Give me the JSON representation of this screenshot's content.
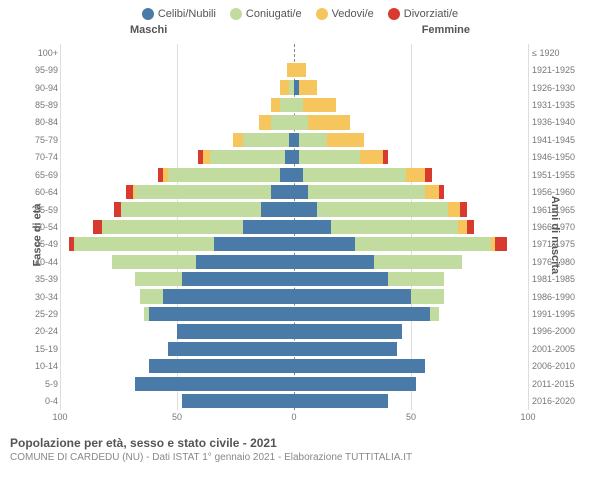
{
  "legend": [
    {
      "label": "Celibi/Nubili",
      "color": "#4a7aa8"
    },
    {
      "label": "Coniugati/e",
      "color": "#c2db9e"
    },
    {
      "label": "Vedovi/e",
      "color": "#f7c55e"
    },
    {
      "label": "Divorziati/e",
      "color": "#d83a2f"
    }
  ],
  "header_male": "Maschi",
  "header_female": "Femmine",
  "ylabel_left": "Fasce di età",
  "ylabel_right": "Anni di nascita",
  "x_max": 100,
  "x_ticks_male": [
    100,
    50,
    0
  ],
  "x_ticks_female": [
    50,
    100
  ],
  "colors": {
    "celibi": "#4a7aa8",
    "coniugati": "#c2db9e",
    "vedovi": "#f7c55e",
    "divorziati": "#d83a2f",
    "grid": "#dddddd",
    "center": "#888888"
  },
  "rows": [
    {
      "age": "100+",
      "birth": "≤ 1920",
      "m": [
        0,
        0,
        0,
        0
      ],
      "f": [
        0,
        0,
        0,
        0
      ]
    },
    {
      "age": "95-99",
      "birth": "1921-1925",
      "m": [
        0,
        0,
        3,
        0
      ],
      "f": [
        0,
        0,
        5,
        0
      ]
    },
    {
      "age": "90-94",
      "birth": "1926-1930",
      "m": [
        0,
        2,
        4,
        0
      ],
      "f": [
        2,
        0,
        8,
        0
      ]
    },
    {
      "age": "85-89",
      "birth": "1931-1935",
      "m": [
        0,
        6,
        4,
        0
      ],
      "f": [
        0,
        4,
        14,
        0
      ]
    },
    {
      "age": "80-84",
      "birth": "1936-1940",
      "m": [
        0,
        10,
        5,
        0
      ],
      "f": [
        0,
        6,
        18,
        0
      ]
    },
    {
      "age": "75-79",
      "birth": "1941-1945",
      "m": [
        2,
        20,
        4,
        0
      ],
      "f": [
        2,
        12,
        16,
        0
      ]
    },
    {
      "age": "70-74",
      "birth": "1946-1950",
      "m": [
        4,
        32,
        3,
        2
      ],
      "f": [
        2,
        26,
        10,
        2
      ]
    },
    {
      "age": "65-69",
      "birth": "1951-1955",
      "m": [
        6,
        48,
        2,
        2
      ],
      "f": [
        4,
        44,
        8,
        3
      ]
    },
    {
      "age": "60-64",
      "birth": "1956-1960",
      "m": [
        10,
        58,
        1,
        3
      ],
      "f": [
        6,
        50,
        6,
        2
      ]
    },
    {
      "age": "55-59",
      "birth": "1961-1965",
      "m": [
        14,
        60,
        0,
        3
      ],
      "f": [
        10,
        56,
        5,
        3
      ]
    },
    {
      "age": "50-54",
      "birth": "1966-1970",
      "m": [
        22,
        60,
        0,
        4
      ],
      "f": [
        16,
        54,
        4,
        3
      ]
    },
    {
      "age": "45-49",
      "birth": "1971-1975",
      "m": [
        34,
        60,
        0,
        2
      ],
      "f": [
        26,
        58,
        2,
        5
      ]
    },
    {
      "age": "40-44",
      "birth": "1976-1980",
      "m": [
        42,
        36,
        0,
        0
      ],
      "f": [
        34,
        38,
        0,
        0
      ]
    },
    {
      "age": "35-39",
      "birth": "1981-1985",
      "m": [
        48,
        20,
        0,
        0
      ],
      "f": [
        40,
        24,
        0,
        0
      ]
    },
    {
      "age": "30-34",
      "birth": "1986-1990",
      "m": [
        56,
        10,
        0,
        0
      ],
      "f": [
        50,
        14,
        0,
        0
      ]
    },
    {
      "age": "25-29",
      "birth": "1991-1995",
      "m": [
        62,
        2,
        0,
        0
      ],
      "f": [
        58,
        4,
        0,
        0
      ]
    },
    {
      "age": "20-24",
      "birth": "1996-2000",
      "m": [
        50,
        0,
        0,
        0
      ],
      "f": [
        46,
        0,
        0,
        0
      ]
    },
    {
      "age": "15-19",
      "birth": "2001-2005",
      "m": [
        54,
        0,
        0,
        0
      ],
      "f": [
        44,
        0,
        0,
        0
      ]
    },
    {
      "age": "10-14",
      "birth": "2006-2010",
      "m": [
        62,
        0,
        0,
        0
      ],
      "f": [
        56,
        0,
        0,
        0
      ]
    },
    {
      "age": "5-9",
      "birth": "2011-2015",
      "m": [
        68,
        0,
        0,
        0
      ],
      "f": [
        52,
        0,
        0,
        0
      ]
    },
    {
      "age": "0-4",
      "birth": "2016-2020",
      "m": [
        48,
        0,
        0,
        0
      ],
      "f": [
        40,
        0,
        0,
        0
      ]
    }
  ],
  "footer_title": "Popolazione per età, sesso e stato civile - 2021",
  "footer_sub": "COMUNE DI CARDEDU (NU) - Dati ISTAT 1° gennaio 2021 - Elaborazione TUTTITALIA.IT"
}
